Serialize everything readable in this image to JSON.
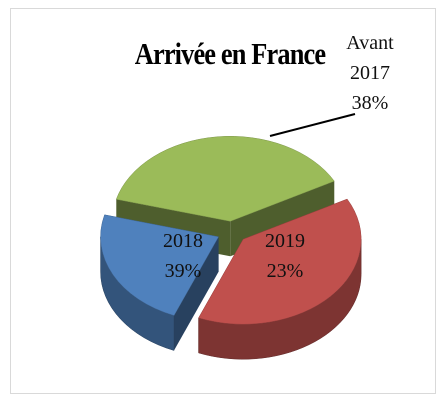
{
  "chart_data": {
    "type": "pie",
    "title": "Arrivée en France",
    "categories": [
      "Avant 2017",
      "2018",
      "2019"
    ],
    "values": [
      38,
      39,
      23
    ],
    "value_labels": [
      "38%",
      "39%",
      "23%"
    ],
    "colors": [
      "#9bbb59",
      "#c0504d",
      "#4f81bd"
    ]
  }
}
